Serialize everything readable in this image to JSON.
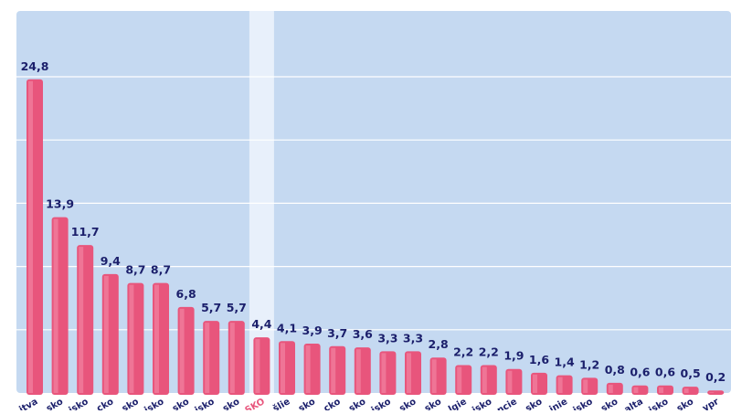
{
  "colors": {
    "plot_background": "#c5d9f1",
    "highlight_band": "#e8f0fb",
    "bar": "#e8557c",
    "bar_highlight_side": "#f07d9c",
    "value_label": "#1b1f6b",
    "tick_label": "#1b1f6b",
    "tick_label_highlight": "#e8557c",
    "gridline": "#ffffff"
  },
  "chart_data": {
    "type": "bar",
    "title": "",
    "xlabel": "",
    "ylabel": "",
    "ylim": [
      0,
      30
    ],
    "grid": true,
    "highlight_category": "SKO",
    "categories": [
      "itva",
      "sko",
      "isko",
      "cko",
      "sko",
      "isko",
      "sko",
      "isko",
      "sko",
      "SKO",
      "šlie",
      "sko",
      "cko",
      "sko",
      "isko",
      "sko",
      "sko",
      "lgie",
      "isko",
      "ncie",
      "sko",
      "inie",
      "isko",
      "sko",
      "alta",
      "isko",
      "sko",
      "ypr"
    ],
    "values": [
      24.8,
      13.9,
      11.7,
      9.4,
      8.7,
      8.7,
      6.8,
      5.7,
      5.7,
      4.4,
      4.1,
      3.9,
      3.7,
      3.6,
      3.3,
      3.3,
      2.8,
      2.2,
      2.2,
      1.9,
      1.6,
      1.4,
      1.2,
      0.8,
      0.6,
      0.6,
      0.5,
      0.2
    ],
    "value_labels": [
      "24,8",
      "13,9",
      "11,7",
      "9,4",
      "8,7",
      "8,7",
      "6,8",
      "5,7",
      "5,7",
      "4,4",
      "4,1",
      "3,9",
      "3,7",
      "3,6",
      "3,3",
      "3,3",
      "2,8",
      "2,2",
      "2,2",
      "1,9",
      "1,6",
      "1,4",
      "1,2",
      "0,8",
      "0,6",
      "0,6",
      "0,5",
      "0,2"
    ]
  }
}
